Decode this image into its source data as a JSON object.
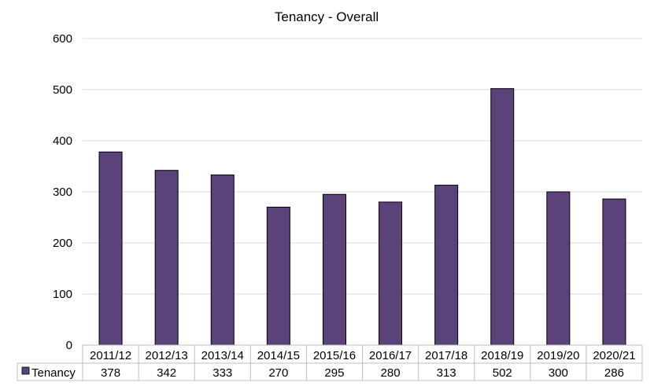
{
  "chart_data": {
    "type": "bar",
    "title": "Tenancy - Overall",
    "categories": [
      "2011/12",
      "2012/13",
      "2013/14",
      "2014/15",
      "2015/16",
      "2016/17",
      "2017/18",
      "2018/19",
      "2019/20",
      "2020/21"
    ],
    "series": [
      {
        "name": "Tenancy",
        "values": [
          378,
          342,
          333,
          270,
          295,
          280,
          313,
          502,
          300,
          286
        ],
        "color": "#5b4279"
      }
    ],
    "yticks": [
      "0",
      "100",
      "200",
      "300",
      "400",
      "500",
      "600"
    ],
    "ylim": [
      0,
      600
    ],
    "grid": true,
    "legend": "data-table-left",
    "data_table": true
  }
}
